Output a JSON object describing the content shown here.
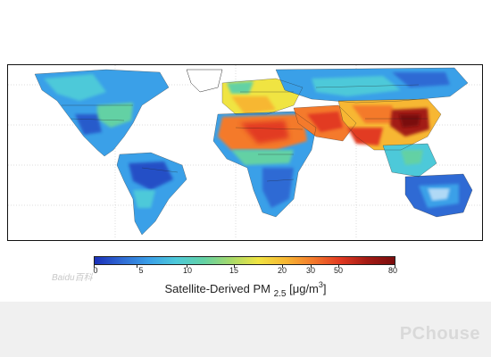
{
  "map": {
    "colorscale": [
      "#1a2fb8",
      "#2f6ad4",
      "#3aa0e8",
      "#4dc9d9",
      "#63d1a4",
      "#a6d96a",
      "#f0e442",
      "#f7b733",
      "#f47a2c",
      "#e23a22",
      "#a31a14",
      "#7a0d0d"
    ]
  },
  "legend": {
    "ticks": [
      "0",
      "5",
      "10",
      "15",
      "20",
      "30",
      "50",
      "80"
    ],
    "title_main": "Satellite-Derived PM",
    "title_sub": "2.5",
    "title_unit_open": " [μg/m",
    "title_unit_sup": "3",
    "title_unit_close": "]"
  },
  "watermarks": {
    "logo_text": "Baidu百科",
    "brand_text": "PChouse"
  }
}
